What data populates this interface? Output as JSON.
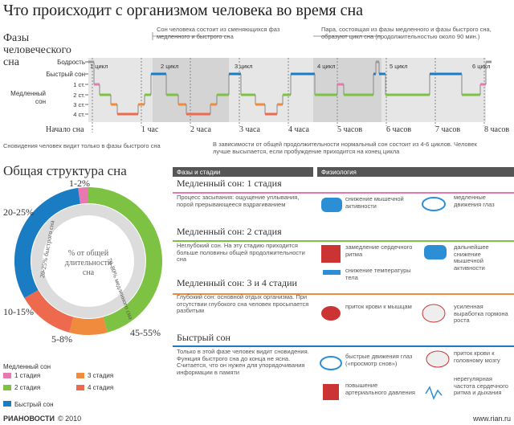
{
  "title": "Что происходит с организмом человека во время сна",
  "phases": {
    "heading": "Фазы человеческого сна",
    "note_left": "Сон человека состоит из сменяющихся фаз медленного и быстрого сна",
    "note_right": "Пара, состоящая из фазы медленного и фазы быстрого сна, образуют цикл сна (продолжительностью около 90 мин.)",
    "levels": [
      "Бодрость",
      "Быстрый сон",
      "1 ст.",
      "2 ст.",
      "3 ст.",
      "4 ст."
    ],
    "slow_label": "Медленный сон",
    "cycles": [
      "1 цикл",
      "2 цикл",
      "3 цикл",
      "4 цикл",
      "5 цикл",
      "6 цикл"
    ],
    "times": [
      "Начало сна",
      "1 час",
      "2 часа",
      "3 часа",
      "4 часа",
      "5 часов",
      "6 часов",
      "7 часов",
      "8 часов"
    ],
    "foot_left": "Сновидения человек видит только в фазы быстрого сна",
    "foot_right": "В зависимости от общей продолжительности нормальный сон состоит из 4-6 циклов. Человек лучше высыпается, если пробуждение приходится на конец цикла"
  },
  "structure": {
    "heading": "Общая структура сна",
    "labels": [
      "1-2%",
      "20-25%",
      "10-15%",
      "5-8%",
      "45-55%"
    ],
    "inner_slow": "70-80% медленного сна",
    "inner_rem": "20-25% быстрого сна",
    "center": "% от общей длительности сна",
    "legend_title": "Медленный сон",
    "legend": [
      "1 стадия",
      "2 стадия",
      "3 стадия",
      "4 стадия"
    ],
    "legend_rem": "Быстрый сон"
  },
  "table": {
    "headers": [
      "Фазы и стадии",
      "Физиология"
    ],
    "sections": [
      {
        "title": "Медленный сон: 1 стадия",
        "text": "Процесс засыпания: ощущение уплывания, порой прерывающееся вздрагиванием",
        "items": [
          "снижение мышечной активности",
          "медленные движения глаз"
        ]
      },
      {
        "title": "Медленный сон: 2 стадия",
        "text": "Неглубокий сон. На эту стадию приходится больше половины общей продолжительности сна",
        "items": [
          "замедление сердечного ритма",
          "дальнейшее снижение мышечной активности",
          "снижение температуры тела"
        ]
      },
      {
        "title": "Медленный сон: 3 и 4 стадии",
        "text": "Глубокий сон: основной отдых организма. При отсутствии глубокого сна человек просыпается разбитым",
        "items": [
          "приток крови к мышцам",
          "усиленная выработка гормона роста"
        ]
      },
      {
        "title": "Быстрый сон",
        "text": "Только в этой фазе человек видит сновидения. Функция быстрого сна до конца не ясна. Считается, что он нужен для упорядочивания информации в памяти",
        "items": [
          "быстрые движения глаз («просмотр снов»)",
          "приток крови к головному мозгу",
          "повышение артериального давления",
          "нерегулярная частота сердечного ритма и дыхания"
        ]
      }
    ]
  },
  "footer": {
    "brand": "РИАНОВОСТИ",
    "year": "© 2010",
    "site": "www.rian.ru"
  }
}
